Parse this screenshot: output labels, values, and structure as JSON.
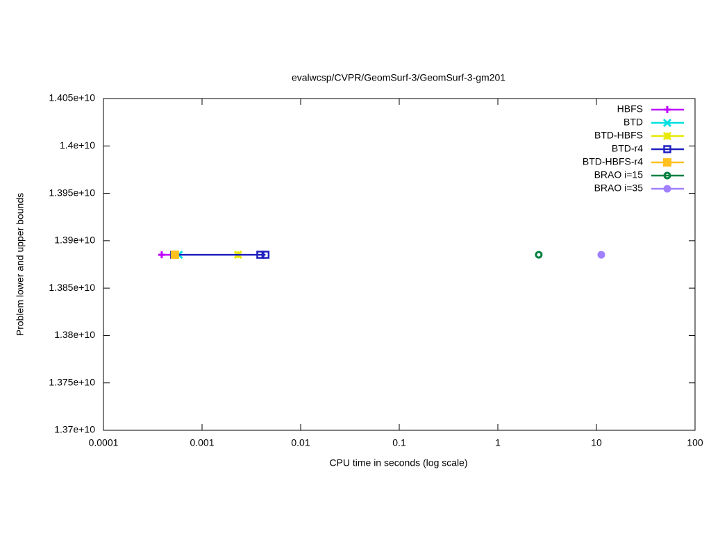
{
  "chart_data": {
    "type": "scatter",
    "title": "evalwcsp/CVPR/GeomSurf-3/GeomSurf-3-gm201",
    "x_label": "CPU time in seconds (log scale)",
    "y_label": "Problem lower and upper bounds",
    "x_scale": "log",
    "xlim": [
      0.0001,
      100
    ],
    "xticks": [
      0.0001,
      0.001,
      0.01,
      0.1,
      1,
      10,
      100
    ],
    "ylim": [
      13700000000,
      14050000000
    ],
    "yticks": [
      {
        "value": 13700000000,
        "label": "1.37e+10"
      },
      {
        "value": 13750000000,
        "label": "1.375e+10"
      },
      {
        "value": 13800000000,
        "label": "1.38e+10"
      },
      {
        "value": 13850000000,
        "label": "1.385e+10"
      },
      {
        "value": 13900000000,
        "label": "1.39e+10"
      },
      {
        "value": 13950000000,
        "label": "1.395e+10"
      },
      {
        "value": 14000000000,
        "label": "1.4e+10"
      },
      {
        "value": 14050000000,
        "label": "1.405e+10"
      }
    ],
    "grid": false,
    "legend": "top-right",
    "series": [
      {
        "name": "HBFS",
        "color": "#c000ff",
        "marker": "plus",
        "x": [
          0.00039,
          0.00052
        ],
        "values": [
          13885200000,
          13885200000
        ]
      },
      {
        "name": "BTD",
        "color": "#00e0e0",
        "marker": "cross",
        "x": [
          0.00058
        ],
        "values": [
          13885200000
        ]
      },
      {
        "name": "BTD-HBFS",
        "color": "#e8e800",
        "marker": "star",
        "x": [
          0.00232
        ],
        "values": [
          13885200000
        ]
      },
      {
        "name": "BTD-r4",
        "color": "#2020c0",
        "marker": "open-square",
        "x": [
          0.00052,
          0.0039,
          0.0044
        ],
        "values": [
          13885200000,
          13885200000,
          13885200000
        ]
      },
      {
        "name": "BTD-HBFS-r4",
        "color": "#ffc020",
        "marker": "filled-square",
        "x": [
          0.00053
        ],
        "values": [
          13885200000
        ]
      },
      {
        "name": "BRAO i=15",
        "color": "#008040",
        "marker": "open-circle",
        "x": [
          2.6
        ],
        "values": [
          13885200000
        ]
      },
      {
        "name": "BRAO i=35",
        "color": "#a080ff",
        "marker": "filled-circle",
        "x": [
          11.2
        ],
        "values": [
          13885200000
        ]
      }
    ]
  }
}
